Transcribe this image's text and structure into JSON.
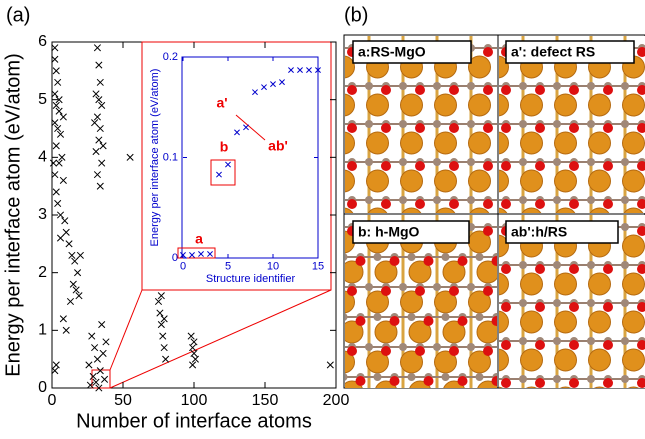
{
  "panel_labels": {
    "a": "(a)",
    "b": "(b)"
  },
  "structures": [
    "a:RS-MgO",
    "a': defect RS",
    "b: h-MgO",
    "ab':h/RS"
  ],
  "chart_data": [
    {
      "type": "scatter",
      "x_label": "Number of interface atoms",
      "y_label": "Energy per interface atom (eV/atom)",
      "color": "#000000",
      "xlim": [
        0,
        200
      ],
      "xticks": [
        0,
        50,
        100,
        150,
        200
      ],
      "ylim": [
        0,
        6
      ],
      "yticks": [
        0,
        1,
        2,
        3,
        4,
        5,
        6
      ],
      "x": [
        2,
        2,
        3,
        4,
        2,
        3,
        5,
        2,
        4,
        6,
        3,
        7,
        5,
        2,
        8,
        3,
        4,
        6,
        9,
        10,
        12,
        14,
        16,
        18,
        15,
        17,
        19,
        20,
        13,
        8,
        10,
        3,
        2,
        5,
        8,
        1,
        6,
        32,
        33,
        34,
        31,
        35,
        32,
        34,
        33,
        31,
        35,
        32,
        34,
        36,
        30,
        33,
        28,
        30,
        32,
        34,
        36,
        38,
        29,
        31,
        26,
        35,
        33,
        27,
        37,
        55,
        75,
        76,
        77,
        78,
        79,
        80,
        77,
        79,
        98,
        99,
        100,
        101,
        100,
        99,
        196
      ],
      "values": [
        5.9,
        5.7,
        5.5,
        5.3,
        5.1,
        4.9,
        4.8,
        4.6,
        4.5,
        4.4,
        4.2,
        4.0,
        3.9,
        3.7,
        3.6,
        3.4,
        3.2,
        3.0,
        2.9,
        2.7,
        2.5,
        2.3,
        2.2,
        2.0,
        1.8,
        1.7,
        1.6,
        2.3,
        1.5,
        1.2,
        1.0,
        0.4,
        0.3,
        5.0,
        4.7,
        3.9,
        2.6,
        5.9,
        5.6,
        5.3,
        5.1,
        4.9,
        4.7,
        4.5,
        4.3,
        4.1,
        3.9,
        3.7,
        3.5,
        4.2,
        4.6,
        5.0,
        0.9,
        0.7,
        0.5,
        0.3,
        0.6,
        0.8,
        0.2,
        0.1,
        0.4,
        1.1,
        0.0,
        0.05,
        0.15,
        4.0,
        1.5,
        1.3,
        1.1,
        0.9,
        0.7,
        0.5,
        1.6,
        1.2,
        0.9,
        0.7,
        0.6,
        0.5,
        0.8,
        0.4,
        0.4
      ]
    },
    {
      "type": "scatter",
      "x_label": "Structure identifier",
      "y_label": "Energy per interface atom (eV/atom)",
      "color": "#0000cc",
      "xlim": [
        0,
        15
      ],
      "xticks": [
        0,
        5,
        10,
        15
      ],
      "ylim": [
        0,
        0.2
      ],
      "yticks": [
        0,
        0.1,
        0.2
      ],
      "x": [
        0,
        1,
        2,
        3,
        4,
        5,
        6,
        7,
        8,
        9,
        10,
        11,
        12,
        13,
        14,
        15
      ],
      "values": [
        0.003,
        0.003,
        0.004,
        0.004,
        0.083,
        0.093,
        0.125,
        0.13,
        0.165,
        0.17,
        0.173,
        0.175,
        0.187,
        0.187,
        0.187,
        0.187
      ],
      "annotations": [
        "a",
        "b",
        "a'",
        "ab'"
      ]
    }
  ]
}
